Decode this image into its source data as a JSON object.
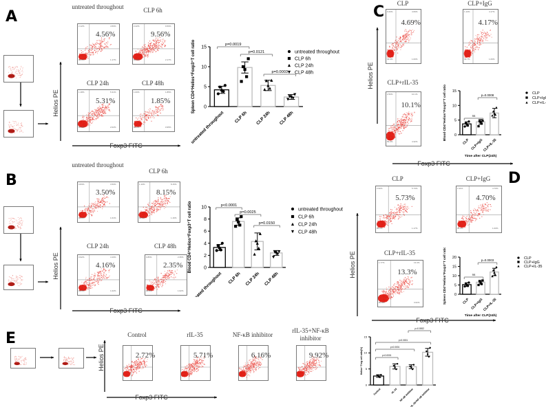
{
  "panels": {
    "A": {
      "letter": "A",
      "flow": [
        {
          "title": "untreated throughout",
          "pct": "4.56%",
          "q1": "2.12%",
          "q2": "4.56%",
          "q3": "1.17%",
          "q4": "92.2%",
          "density": 0.5
        },
        {
          "title": "CLP 6h",
          "pct": "9.56%",
          "q1": "2.22%",
          "q2": "9.56%",
          "q3": "2.17%",
          "q4": "86.0%",
          "density": 0.85
        },
        {
          "title": "CLP 24h",
          "pct": "5.31%",
          "q1": "1.18%",
          "q2": "5.31%",
          "q3": "2.02%",
          "q4": "91.5%",
          "density": 0.9
        },
        {
          "title": "CLP 48h",
          "pct": "1.85%",
          "q1": "1.00%",
          "q2": "1.85%",
          "q3": "0.95%",
          "q4": "96.2%",
          "density": 0.35
        }
      ],
      "y_axis": "Helios PE",
      "x_axis": "Foxp3 FITC"
    },
    "B": {
      "letter": "B",
      "flow": [
        {
          "title": "untreated throughout",
          "pct": "3.50%",
          "q1": "0.83%",
          "q2": "3.50%",
          "q3": "1.01%",
          "q4": "94.6%",
          "density": 0.45
        },
        {
          "title": "CLP 6h",
          "pct": "8.15%",
          "q1": "1.10%",
          "q2": "8.15%",
          "q3": "1.16%",
          "q4": "89.6%",
          "density": 0.7
        },
        {
          "title": "CLP 24h",
          "pct": "4.16%",
          "q1": "0.92%",
          "q2": "4.16%",
          "q3": "1.02%",
          "q4": "93.9%",
          "density": 0.45
        },
        {
          "title": "CLP 48h",
          "pct": "2.35%",
          "q1": "0.85%",
          "q2": "2.35%",
          "q3": "1.02%",
          "q4": "95.8%",
          "density": 0.35
        }
      ],
      "y_axis": "Helios PE",
      "x_axis": "Foxp3 FITC"
    },
    "C": {
      "letter": "C",
      "flow": [
        {
          "title": "CLP",
          "pct": "4.69%",
          "q1": "0.20%",
          "q2": "4.69%",
          "q3": "1.00%",
          "q4": "93.6%",
          "density": 0.5
        },
        {
          "title": "CLP+IgG",
          "pct": "4.17%",
          "q1": "1.10%",
          "q2": "4.17%",
          "q3": "1.09%",
          "q4": "93.7%",
          "density": 0.45
        },
        {
          "title": "CLP+rIL-35",
          "pct": "10.1%",
          "q1": "2.50%",
          "q2": "10.1%",
          "q3": "4.32%",
          "q4": "83.0%",
          "density": 0.9
        }
      ],
      "y_axis": "Helios PE",
      "x_axis": "Foxp3 FITC"
    },
    "D": {
      "letter": "D",
      "flow": [
        {
          "title": "CLP",
          "pct": "5.73%",
          "q1": "2.90%",
          "q2": "5.73%",
          "q3": "1.17%",
          "q4": "90.2%",
          "density": 0.55
        },
        {
          "title": "CLP+IgG",
          "pct": "4.70%",
          "q1": "2.11%",
          "q2": "4.70%",
          "q3": "1.00%",
          "q4": "92.2%",
          "density": 0.45
        },
        {
          "title": "CLP+rIL-35",
          "pct": "13.3%",
          "q1": "1.77%",
          "q2": "13.3%",
          "q3": "3.62%",
          "q4": "80.9%",
          "density": 0.95
        }
      ],
      "y_axis": "Helios PE",
      "x_axis": "Foxp3 FITC"
    },
    "E": {
      "letter": "E",
      "flow": [
        {
          "title": "Control",
          "pct": "2.72%",
          "density": 0.7
        },
        {
          "title": "rIL-35",
          "pct": "5.71%",
          "density": 0.75
        },
        {
          "title": "NF-κB inhibitor",
          "pct": "6.16%",
          "density": 0.75
        },
        {
          "title": "rIL-35+NF-κB inhibitor",
          "pct": "9.92%",
          "density": 0.9
        }
      ],
      "y_axis": "Helios PE",
      "x_axis": "Foxp3 FITC"
    }
  },
  "chart_data": [
    {
      "id": "A-bar",
      "type": "bar",
      "title": "",
      "ylabel": "Spleen CD4⁺Helios⁺Foxp3⁺T cell ratio",
      "xlabel": "",
      "categories": [
        "untreated throughout",
        "CLP 6h",
        "CLP 24h",
        "CLP 48h"
      ],
      "values": [
        4.2,
        9.8,
        5.3,
        2.4
      ],
      "errors": [
        0.9,
        1.4,
        1.3,
        0.6
      ],
      "markers": [
        "circle",
        "square",
        "triangle",
        "triangle-down"
      ],
      "points": [
        [
          5.3,
          4.9,
          4.1,
          3.8,
          3.2
        ],
        [
          12.0,
          10.0,
          9.3,
          7.5,
          6.3
        ],
        [
          6.6,
          6.5,
          5.3,
          4.6,
          4.3
        ],
        [
          3.0,
          2.5,
          2.3,
          2.1,
          1.8
        ]
      ],
      "ylim": [
        0,
        15
      ],
      "yticks": [
        0,
        5,
        10,
        15
      ],
      "significance": [
        {
          "from": 0,
          "to": 1,
          "label": "p=0.0019"
        },
        {
          "from": 1,
          "to": 2,
          "label": "p=0.0121"
        },
        {
          "from": 2,
          "to": 3,
          "label": "p=0.0003"
        }
      ],
      "legend": [
        "untreated throughout",
        "CLP 6h",
        "CLP 24h",
        "CLP 48h"
      ],
      "legend_position": "right"
    },
    {
      "id": "B-bar",
      "type": "bar",
      "title": "",
      "ylabel": "Blood CD4⁺Helios⁺Foxp3⁺T cell ratio",
      "xlabel": "",
      "categories": [
        "untreated throughout",
        "CLP 6h",
        "CLP 24h",
        "CLP 48h"
      ],
      "values": [
        3.3,
        7.6,
        4.3,
        2.4
      ],
      "errors": [
        0.5,
        0.6,
        1.4,
        0.4
      ],
      "markers": [
        "circle",
        "square",
        "triangle",
        "triangle-down"
      ],
      "points": [
        [
          4.0,
          3.6,
          3.2,
          2.9,
          2.8
        ],
        [
          8.4,
          7.9,
          7.5,
          7.0,
          6.8
        ],
        [
          5.6,
          4.4,
          4.0,
          3.2,
          2.2
        ],
        [
          2.6,
          2.5,
          2.4,
          2.2,
          1.7
        ]
      ],
      "ylim": [
        0,
        10
      ],
      "yticks": [
        0,
        2,
        4,
        6,
        8,
        10
      ],
      "significance": [
        {
          "from": 0,
          "to": 1,
          "label": "p<0.0001"
        },
        {
          "from": 1,
          "to": 2,
          "label": "p=0.0025"
        },
        {
          "from": 2,
          "to": 3,
          "label": "p=0.0150"
        }
      ],
      "legend": [
        "untreated throughout",
        "CLP 6h",
        "CLP 24h",
        "CLP 48h"
      ],
      "legend_position": "right"
    },
    {
      "id": "C-bar",
      "type": "bar",
      "title": "",
      "ylabel": "Blood CD4⁺Helios⁺Foxp3⁺T cell ratio",
      "xlabel": "Time after CLP(24h)",
      "categories": [
        "CLP",
        "CLP+IgG",
        "CLP+IL-35"
      ],
      "values": [
        3.7,
        4.4,
        7.4
      ],
      "errors": [
        0.7,
        0.8,
        1.6
      ],
      "markers": [
        "circle",
        "square",
        "triangle"
      ],
      "points": [
        [
          4.5,
          4.0,
          3.6,
          3.1,
          2.8
        ],
        [
          4.8,
          4.6,
          4.3,
          3.8,
          2.9
        ],
        [
          9.3,
          8.0,
          7.3,
          6.9,
          6.6
        ]
      ],
      "ylim": [
        0,
        15
      ],
      "yticks": [
        0,
        5,
        10,
        15
      ],
      "significance": [
        {
          "from": 0,
          "to": 1,
          "label": "ns"
        },
        {
          "from": 1,
          "to": 2,
          "label": "p=0.0008"
        }
      ],
      "legend": [
        "CLP",
        "CLP+IgG",
        "CLP+IL-35"
      ],
      "legend_position": "right"
    },
    {
      "id": "D-bar",
      "type": "bar",
      "title": "",
      "ylabel": "Spleen CD4⁺Helios⁺Foxp3⁺T cell ratio",
      "xlabel": "Time after CLP(24h)",
      "categories": [
        "CLP",
        "CLP+IgG",
        "CLP+IL-35"
      ],
      "values": [
        5.2,
        6.5,
        12.0
      ],
      "errors": [
        1.0,
        1.0,
        2.0
      ],
      "markers": [
        "circle",
        "square",
        "triangle"
      ],
      "points": [
        [
          6.3,
          5.6,
          5.0,
          4.5,
          4.2
        ],
        [
          7.4,
          7.0,
          6.4,
          5.5,
          5.0
        ],
        [
          14.7,
          13.0,
          11.7,
          10.5,
          9.8
        ]
      ],
      "ylim": [
        0,
        20
      ],
      "yticks": [
        0,
        5,
        10,
        15,
        20
      ],
      "significance": [
        {
          "from": 0,
          "to": 1,
          "label": "ns"
        },
        {
          "from": 1,
          "to": 2,
          "label": "p=0.0003"
        }
      ],
      "legend": [
        "CLP",
        "CLP+IgG",
        "CLP+IL-35"
      ],
      "legend_position": "right"
    },
    {
      "id": "E-bar",
      "type": "bar",
      "title": "",
      "ylabel": "Helios⁺ Treg cell ratio(%)",
      "xlabel": "",
      "categories": [
        "Control",
        "rIL-35",
        "NF-κB inhibitor",
        "rIL-35+NF-κB inhibitor"
      ],
      "values": [
        2.8,
        5.8,
        5.7,
        10.2
      ],
      "errors": [
        0.4,
        0.8,
        0.6,
        1.2
      ],
      "markers": [
        "circle",
        "circle",
        "circle",
        "circle"
      ],
      "points": [
        [
          3.2,
          2.9,
          2.7,
          2.4
        ],
        [
          6.6,
          6.0,
          5.5,
          4.9
        ],
        [
          6.3,
          5.8,
          5.5,
          4.9
        ],
        [
          11.6,
          10.5,
          9.6,
          8.8
        ]
      ],
      "ylim": [
        0,
        15
      ],
      "yticks": [
        0,
        5,
        10,
        15
      ],
      "significance": [
        {
          "from": 0,
          "to": 1,
          "label": "p<0.0001"
        },
        {
          "from": 0,
          "to": 2,
          "label": "p<0.0001"
        },
        {
          "from": 0,
          "to": 3,
          "label": "p<0.0001"
        },
        {
          "from": 2,
          "to": 3,
          "label": "p=0.0002"
        }
      ],
      "legend": [],
      "legend_position": "none"
    }
  ]
}
